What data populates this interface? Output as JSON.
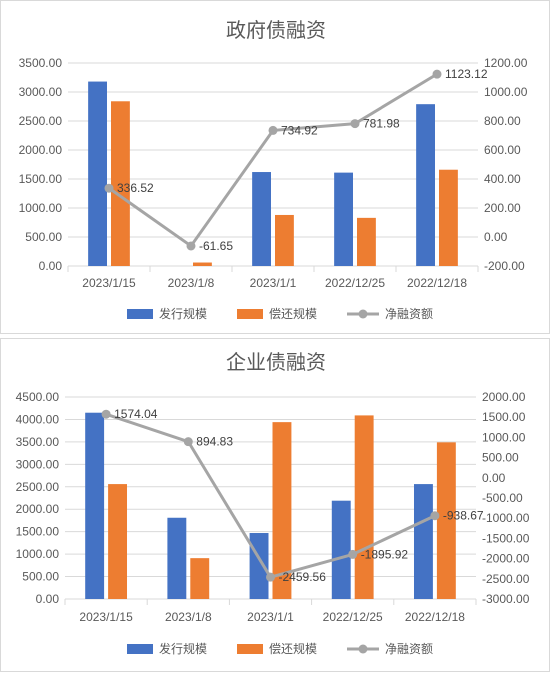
{
  "colors": {
    "issue": "#4472c4",
    "repay": "#ed7d31",
    "net": "#a5a5a5",
    "grid": "#d9d9d9",
    "text": "#595959"
  },
  "chart_data": [
    {
      "type": "bar",
      "title": "政府债融资",
      "categories": [
        "2023/1/15",
        "2023/1/8",
        "2023/1/1",
        "2022/12/25",
        "2022/12/18"
      ],
      "series": [
        {
          "name": "发行规模",
          "type": "bar",
          "axis": "left",
          "values": [
            3180,
            0,
            1620,
            1610,
            2790
          ]
        },
        {
          "name": "偿还规模",
          "type": "bar",
          "axis": "left",
          "values": [
            2840,
            60,
            880,
            830,
            1660
          ]
        },
        {
          "name": "净融资额",
          "type": "line",
          "axis": "right",
          "values": [
            336.52,
            -61.65,
            734.92,
            781.98,
            1123.12
          ]
        }
      ],
      "data_labels": [
        "336.52",
        "-61.65",
        "734.92",
        "781.98",
        "1123.12"
      ],
      "left_ticks": [
        "0.00",
        "500.00",
        "1000.00",
        "1500.00",
        "2000.00",
        "2500.00",
        "3000.00",
        "3500.00"
      ],
      "right_ticks": [
        "-200.00",
        "0.00",
        "200.00",
        "400.00",
        "600.00",
        "800.00",
        "1000.00",
        "1200.00"
      ],
      "ylim_left": [
        0,
        3500
      ],
      "ylim_right": [
        -200,
        1200
      ],
      "legend": "bottom",
      "grid": true
    },
    {
      "type": "bar",
      "title": "企业债融资",
      "categories": [
        "2023/1/15",
        "2023/1/8",
        "2023/1/1",
        "2022/12/25",
        "2022/12/18"
      ],
      "series": [
        {
          "name": "发行规模",
          "type": "bar",
          "axis": "left",
          "values": [
            4150,
            1810,
            1470,
            2190,
            2560
          ]
        },
        {
          "name": "偿还规模",
          "type": "bar",
          "axis": "left",
          "values": [
            2560,
            910,
            3940,
            4090,
            3490
          ]
        },
        {
          "name": "净融资额",
          "type": "line",
          "axis": "right",
          "values": [
            1574.04,
            894.83,
            -2459.56,
            -1895.92,
            -938.67
          ]
        }
      ],
      "data_labels": [
        "1574.04",
        "894.83",
        "-2459.56",
        "-1895.92",
        "-938.67"
      ],
      "left_ticks": [
        "0.00",
        "500.00",
        "1000.00",
        "1500.00",
        "2000.00",
        "2500.00",
        "3000.00",
        "3500.00",
        "4000.00",
        "4500.00"
      ],
      "right_ticks": [
        "-3000.00",
        "-2500.00",
        "-2000.00",
        "-1500.00",
        "-1000.00",
        "-500.00",
        "0.00",
        "500.00",
        "1000.00",
        "1500.00",
        "2000.00"
      ],
      "ylim_left": [
        0,
        4500
      ],
      "ylim_right": [
        -3000,
        2000
      ],
      "legend": "bottom",
      "grid": true
    }
  ]
}
